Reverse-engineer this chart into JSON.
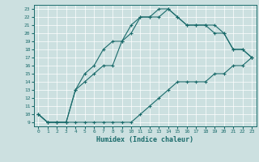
{
  "xlabel": "Humidex (Indice chaleur)",
  "bg_color": "#cce0e0",
  "line_color": "#1a6b6b",
  "grid_color": "#ffffff",
  "xlim": [
    -0.5,
    23.5
  ],
  "ylim": [
    8.5,
    23.5
  ],
  "xticks": [
    0,
    1,
    2,
    3,
    4,
    5,
    6,
    7,
    8,
    9,
    10,
    11,
    12,
    13,
    14,
    15,
    16,
    17,
    18,
    19,
    20,
    21,
    22,
    23
  ],
  "yticks": [
    9,
    10,
    11,
    12,
    13,
    14,
    15,
    16,
    17,
    18,
    19,
    20,
    21,
    22,
    23
  ],
  "line1_x": [
    0,
    1,
    2,
    3,
    4,
    5,
    6,
    7,
    8,
    9,
    10,
    11,
    12,
    13,
    14,
    15,
    16,
    17,
    18,
    19,
    20,
    21,
    22,
    23
  ],
  "line1_y": [
    10,
    9,
    9,
    9,
    9,
    9,
    9,
    9,
    9,
    9,
    9,
    10,
    11,
    12,
    13,
    14,
    14,
    14,
    14,
    15,
    15,
    16,
    16,
    17
  ],
  "line2_x": [
    0,
    1,
    2,
    3,
    4,
    5,
    6,
    7,
    8,
    9,
    10,
    11,
    12,
    13,
    14,
    15,
    16,
    17,
    18,
    19,
    20,
    21,
    22,
    23
  ],
  "line2_y": [
    10,
    9,
    9,
    9,
    13,
    14,
    15,
    16,
    16,
    19,
    20,
    22,
    22,
    22,
    23,
    22,
    21,
    21,
    21,
    20,
    20,
    18,
    18,
    17
  ],
  "line3_x": [
    0,
    1,
    2,
    3,
    4,
    5,
    6,
    7,
    8,
    9,
    10,
    11,
    12,
    13,
    14,
    15,
    16,
    17,
    18,
    19,
    20,
    21,
    22,
    23
  ],
  "line3_y": [
    10,
    9,
    9,
    9,
    13,
    15,
    16,
    18,
    19,
    19,
    21,
    22,
    22,
    23,
    23,
    22,
    21,
    21,
    21,
    21,
    20,
    18,
    18,
    17
  ]
}
